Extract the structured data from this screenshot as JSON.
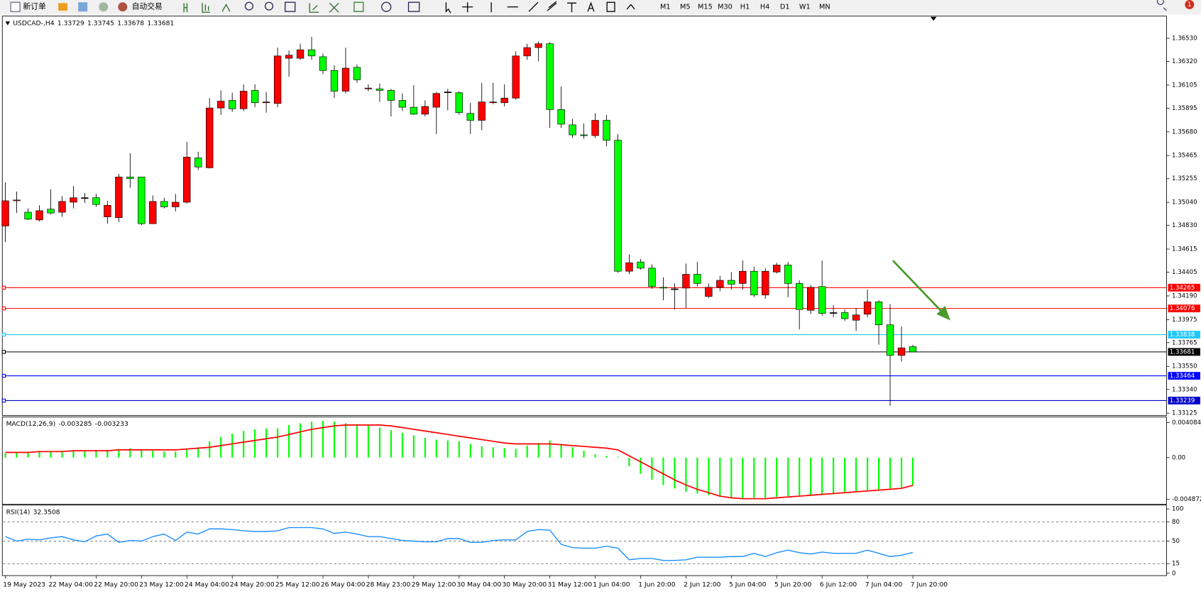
{
  "toolbar": {
    "new_order": "新订单",
    "auto_trading": "自动交易",
    "timeframes": [
      "M1",
      "M5",
      "M15",
      "M30",
      "H1",
      "H4",
      "D1",
      "W1",
      "MN"
    ],
    "notification": 1
  },
  "chart_data": [
    {
      "type": "candlestick",
      "title": "USDCAD-,H4",
      "legend_values": [
        1.33729,
        1.33745,
        1.33678,
        1.33681
      ],
      "up_color": "#ff0000",
      "down_color": "#00ff00",
      "categories": [
        "19 May 2023",
        null,
        null,
        null,
        "22 May 04:00",
        null,
        null,
        null,
        "22 May 20:00",
        null,
        null,
        null,
        "23 May 12:00",
        null,
        null,
        null,
        "24 May 04:00",
        null,
        null,
        null,
        "24 May 20:00",
        null,
        null,
        null,
        "25 May 12:00",
        null,
        null,
        null,
        "26 May 04:00",
        null,
        null,
        null,
        "28 May 23:00",
        null,
        null,
        null,
        "29 May 12:00",
        null,
        null,
        null,
        "30 May 04:00",
        null,
        null,
        null,
        "30 May 20:00",
        null,
        null,
        null,
        "31 May 12:00",
        null,
        null,
        null,
        "1 Jun 04:00",
        null,
        null,
        null,
        "1 Jun 20:00",
        null,
        null,
        null,
        "2 Jun 12:00",
        null,
        null,
        null,
        "5 Jun 04:00",
        null,
        null,
        null,
        "5 Jun 20:00",
        null,
        null,
        null,
        "6 Jun 12:00",
        null,
        null,
        null,
        "7 Jun 04:00",
        null,
        null,
        null,
        "7 Jun 20:00"
      ],
      "open": [
        1.34825,
        1.35054,
        1.3495,
        1.3488,
        1.34978,
        1.3495,
        1.35041,
        1.35082,
        1.35082,
        1.34908,
        1.34901,
        1.3527,
        1.3527,
        1.34846,
        1.35048,
        1.34999,
        1.35041,
        1.35444,
        1.35354,
        1.35897,
        1.35966,
        1.3589,
        1.36057,
        1.35945,
        1.35938,
        1.36349,
        1.36349,
        1.36426,
        1.36363,
        1.36238,
        1.3605,
        1.36266,
        1.36071,
        1.36071,
        1.36057,
        1.35966,
        1.35904,
        1.35841,
        1.35904,
        1.36043,
        1.36036,
        1.35848,
        1.35785,
        1.35945,
        1.35945,
        1.35987,
        1.3637,
        1.36446,
        1.36481,
        1.35883,
        1.35744,
        1.35653,
        1.35646,
        1.35785,
        1.35604,
        1.34414,
        1.34498,
        1.34442,
        1.34268,
        1.34254,
        1.34261,
        1.34386,
        1.34185,
        1.34268,
        1.34331,
        1.34303,
        1.34414,
        1.34198,
        1.34407,
        1.3447,
        1.34303,
        1.34059,
        1.34275,
        1.34038,
        1.34038,
        1.33969,
        1.34024,
        1.34136,
        1.33927,
        1.33649,
        1.33729
      ],
      "high": [
        1.35222,
        1.35138,
        1.34985,
        1.35013,
        1.35159,
        1.35096,
        1.35187,
        1.35124,
        1.35117,
        1.35054,
        1.35298,
        1.35486,
        1.3527,
        1.35103,
        1.35082,
        1.35117,
        1.3559,
        1.355,
        1.35987,
        1.36057,
        1.36036,
        1.36112,
        1.36112,
        1.36043,
        1.36446,
        1.36419,
        1.36481,
        1.36544,
        1.36391,
        1.36286,
        1.36446,
        1.36293,
        1.36112,
        1.36119,
        1.36071,
        1.36029,
        1.36105,
        1.35966,
        1.36043,
        1.36071,
        1.3605,
        1.35945,
        1.36126,
        1.36126,
        1.36112,
        1.36412,
        1.36481,
        1.36502,
        1.36495,
        1.36092,
        1.35799,
        1.35757,
        1.35848,
        1.35834,
        1.3566,
        1.34567,
        1.34526,
        1.34477,
        1.34359,
        1.34303,
        1.34484,
        1.34498,
        1.34303,
        1.34372,
        1.34407,
        1.34512,
        1.34456,
        1.34442,
        1.34491,
        1.34498,
        1.34331,
        1.34289,
        1.34512,
        1.34108,
        1.34066,
        1.3408,
        1.34247,
        1.3415,
        1.34115,
        1.33913,
        1.33745
      ],
      "low": [
        1.34679,
        1.34943,
        1.3488,
        1.34867,
        1.34929,
        1.34908,
        1.34985,
        1.35034,
        1.34999,
        1.34846,
        1.3486,
        1.35173,
        1.34832,
        1.34846,
        1.34985,
        1.34957,
        1.35027,
        1.35333,
        1.35347,
        1.35834,
        1.35862,
        1.35869,
        1.35904,
        1.35855,
        1.35904,
        1.36182,
        1.36335,
        1.36335,
        1.36203,
        1.35987,
        1.36029,
        1.36126,
        1.3605,
        1.35952,
        1.3582,
        1.35869,
        1.35834,
        1.3582,
        1.3566,
        1.35876,
        1.35834,
        1.3566,
        1.35695,
        1.35931,
        1.35911,
        1.35973,
        1.36335,
        1.36321,
        1.35716,
        1.35716,
        1.35625,
        1.35618,
        1.35625,
        1.35549,
        1.344,
        1.34386,
        1.34428,
        1.34254,
        1.3415,
        1.34066,
        1.3408,
        1.34275,
        1.34171,
        1.34233,
        1.34247,
        1.34247,
        1.34178,
        1.34164,
        1.34393,
        1.34178,
        1.33885,
        1.34024,
        1.34011,
        1.33997,
        1.33962,
        1.33871,
        1.33997,
        1.33746,
        1.33189,
        1.33593,
        1.33678
      ],
      "close": [
        1.35054,
        1.35061,
        1.34887,
        1.34964,
        1.34943,
        1.35048,
        1.35082,
        1.35082,
        1.3502,
        1.35013,
        1.3527,
        1.35256,
        1.34846,
        1.35048,
        1.34999,
        1.35041,
        1.35451,
        1.35361,
        1.35897,
        1.35959,
        1.3589,
        1.3605,
        1.35945,
        1.35952,
        1.3637,
        1.36377,
        1.36426,
        1.3637,
        1.36238,
        1.3605,
        1.36259,
        1.36154,
        1.36078,
        1.36057,
        1.35966,
        1.35904,
        1.35841,
        1.35911,
        1.36029,
        1.36043,
        1.35855,
        1.35785,
        1.35952,
        1.35952,
        1.35987,
        1.3637,
        1.36446,
        1.36481,
        1.35883,
        1.3575,
        1.35653,
        1.35646,
        1.35785,
        1.35604,
        1.34414,
        1.34491,
        1.34442,
        1.34275,
        1.34261,
        1.34254,
        1.34386,
        1.34303,
        1.34268,
        1.34331,
        1.34296,
        1.34414,
        1.34198,
        1.34414,
        1.3447,
        1.34303,
        1.34066,
        1.34268,
        1.34031,
        1.34038,
        1.33983,
        1.34017,
        1.34136,
        1.33927,
        1.33649,
        1.33718,
        1.33681
      ],
      "ylim": [
        1.33111,
        1.36725
      ],
      "yticks": [
        {
          "value": 1.3653,
          "label": "1.36530"
        },
        {
          "value": 1.3632,
          "label": "1.36320"
        },
        1.36105,
        1.35895,
        {
          "value": 1.3568,
          "label": "1.35680"
        },
        1.35465,
        1.35255,
        {
          "value": 1.3504,
          "label": "1.35040"
        },
        {
          "value": 1.3483,
          "label": "1.34830"
        },
        1.34615,
        1.34405,
        {
          "value": 1.3419,
          "label": "1.34190"
        },
        1.33975,
        1.33765,
        {
          "value": 1.3355,
          "label": "1.33550"
        },
        {
          "value": 1.3334,
          "label": "1.33340"
        },
        1.33125
      ],
      "levels": [
        {
          "value": 1.34265,
          "color": "#ff0000"
        },
        {
          "value": 1.34076,
          "color": "#ff0000"
        },
        {
          "value": 1.33838,
          "color": "#1ec8ff"
        },
        {
          "value": 1.33681,
          "color": "#000000"
        },
        {
          "value": 1.33464,
          "color": "#0000ff"
        },
        {
          "value": 1.33239,
          "color": "#0000cd"
        }
      ]
    },
    {
      "type": "macd",
      "title": "MACD(12,26,9)",
      "legend_values": [
        -0.003285,
        -0.003233
      ],
      "histogram_color": "#00ff00",
      "signal_color": "#ff0000",
      "histogram": [
        0.0005,
        0.0006,
        0.0006,
        0.0007,
        0.0007,
        0.0008,
        0.0008,
        0.0008,
        0.0009,
        0.0009,
        0.001,
        0.0011,
        0.0009,
        0.0008,
        0.0007,
        0.0007,
        0.001,
        0.0012,
        0.0019,
        0.0024,
        0.0028,
        0.0031,
        0.0033,
        0.0034,
        0.0034,
        0.0038,
        0.004,
        0.0042,
        0.0043,
        0.0042,
        0.004,
        0.0039,
        0.0037,
        0.0035,
        0.0032,
        0.0029,
        0.0026,
        0.0023,
        0.0021,
        0.002,
        0.0019,
        0.0016,
        0.0013,
        0.0012,
        0.0011,
        0.001,
        0.0014,
        0.0017,
        0.002,
        0.0016,
        0.0012,
        0.0008,
        0.0004,
        0.0002,
        0.0001,
        -0.001,
        -0.0019,
        -0.0026,
        -0.0032,
        -0.0036,
        -0.004,
        -0.0042,
        -0.0044,
        -0.0046,
        -0.0047,
        -0.0048,
        -0.0047,
        -0.0047,
        -0.0046,
        -0.0045,
        -0.0044,
        -0.0044,
        -0.0043,
        -0.0043,
        -0.004,
        -0.0039,
        -0.0038,
        -0.0037,
        -0.0036,
        -0.0035,
        -0.003285
      ],
      "signal": [
        0.0006,
        0.0006,
        0.0006,
        0.0007,
        0.0007,
        0.0007,
        0.0008,
        0.0008,
        0.0008,
        0.0008,
        0.0009,
        0.0009,
        0.0009,
        0.0009,
        0.0009,
        0.0009,
        0.001,
        0.0011,
        0.0012,
        0.0014,
        0.0016,
        0.0018,
        0.002,
        0.0022,
        0.0024,
        0.0027,
        0.003,
        0.0033,
        0.0035,
        0.0037,
        0.0038,
        0.0038,
        0.0038,
        0.0038,
        0.0037,
        0.0035,
        0.0033,
        0.0031,
        0.0029,
        0.0027,
        0.0025,
        0.0023,
        0.0021,
        0.0019,
        0.0017,
        0.0016,
        0.0016,
        0.0016,
        0.0016,
        0.0015,
        0.0014,
        0.0013,
        0.0012,
        0.0011,
        0.0009,
        0.0002,
        -0.0005,
        -0.0012,
        -0.0019,
        -0.0026,
        -0.0032,
        -0.0037,
        -0.0041,
        -0.0045,
        -0.0047,
        -0.0048,
        -0.0048,
        -0.0048,
        -0.0047,
        -0.0046,
        -0.0045,
        -0.0044,
        -0.0043,
        -0.0042,
        -0.0041,
        -0.004,
        -0.0039,
        -0.0038,
        -0.0037,
        -0.0036,
        -0.003233
      ],
      "ylim": [
        -0.00537,
        0.004654
      ],
      "yticks": [
        0.004084,
        {
          "value": 0,
          "label": "0.00"
        },
        -0.004872
      ]
    },
    {
      "type": "line",
      "title": "RSI(14)",
      "legend_values": [
        32.3508
      ],
      "color": "#1e90ff",
      "values": [
        57,
        50,
        53,
        52,
        55,
        57,
        52,
        49,
        58,
        61,
        48,
        51,
        50,
        57,
        61,
        51,
        64,
        61,
        69,
        69,
        68,
        66,
        65,
        65,
        66,
        71,
        71,
        71,
        69,
        62,
        64,
        61,
        57,
        57,
        54,
        51,
        50,
        49,
        49,
        54,
        54,
        48,
        48,
        51,
        52,
        52,
        65,
        68,
        67,
        45,
        40,
        39,
        39,
        42,
        39,
        21,
        23,
        23,
        20,
        20,
        21,
        25,
        25,
        25,
        26,
        26,
        31,
        26,
        32,
        36,
        32,
        30,
        33,
        31,
        31,
        31,
        36,
        31,
        26,
        28,
        32.3508
      ],
      "ylim": [
        -2.4,
        104.8
      ],
      "yticks": [
        100,
        80,
        50,
        15,
        0
      ],
      "levels": [
        80,
        50,
        15
      ]
    }
  ]
}
